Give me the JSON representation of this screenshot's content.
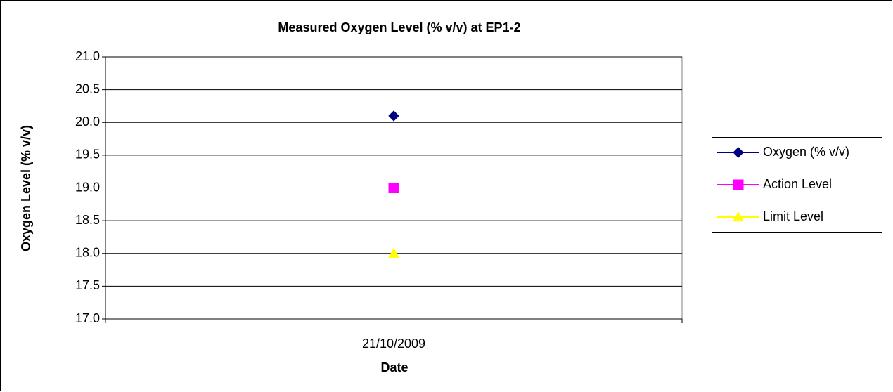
{
  "chart_data": {
    "type": "line",
    "title": "Measured Oxygen Level (% v/v) at EP1-2",
    "x_label": "Date",
    "y_label": "Oxygen Level (% v/v)",
    "categories": [
      "21/10/2009"
    ],
    "series": [
      {
        "name": "Oxygen (% v/v)",
        "color": "#000080",
        "marker": "diamond",
        "values": [
          20.1
        ]
      },
      {
        "name": "Action Level",
        "color": "#ff00ff",
        "marker": "square",
        "values": [
          19
        ]
      },
      {
        "name": "Limit Level",
        "color": "#ffff00",
        "marker": "triangle",
        "values": [
          18
        ]
      }
    ],
    "ylim": [
      17,
      21
    ],
    "yticks": [
      {
        "value": 17,
        "label": "17.0"
      },
      17.5,
      {
        "value": 18,
        "label": "18.0"
      },
      18.5,
      {
        "value": 19,
        "label": "19.0"
      },
      19.5,
      {
        "value": 20,
        "label": "20.0"
      },
      20.5,
      {
        "value": 21,
        "label": "21.0"
      }
    ],
    "grid": true,
    "legend": "right"
  }
}
